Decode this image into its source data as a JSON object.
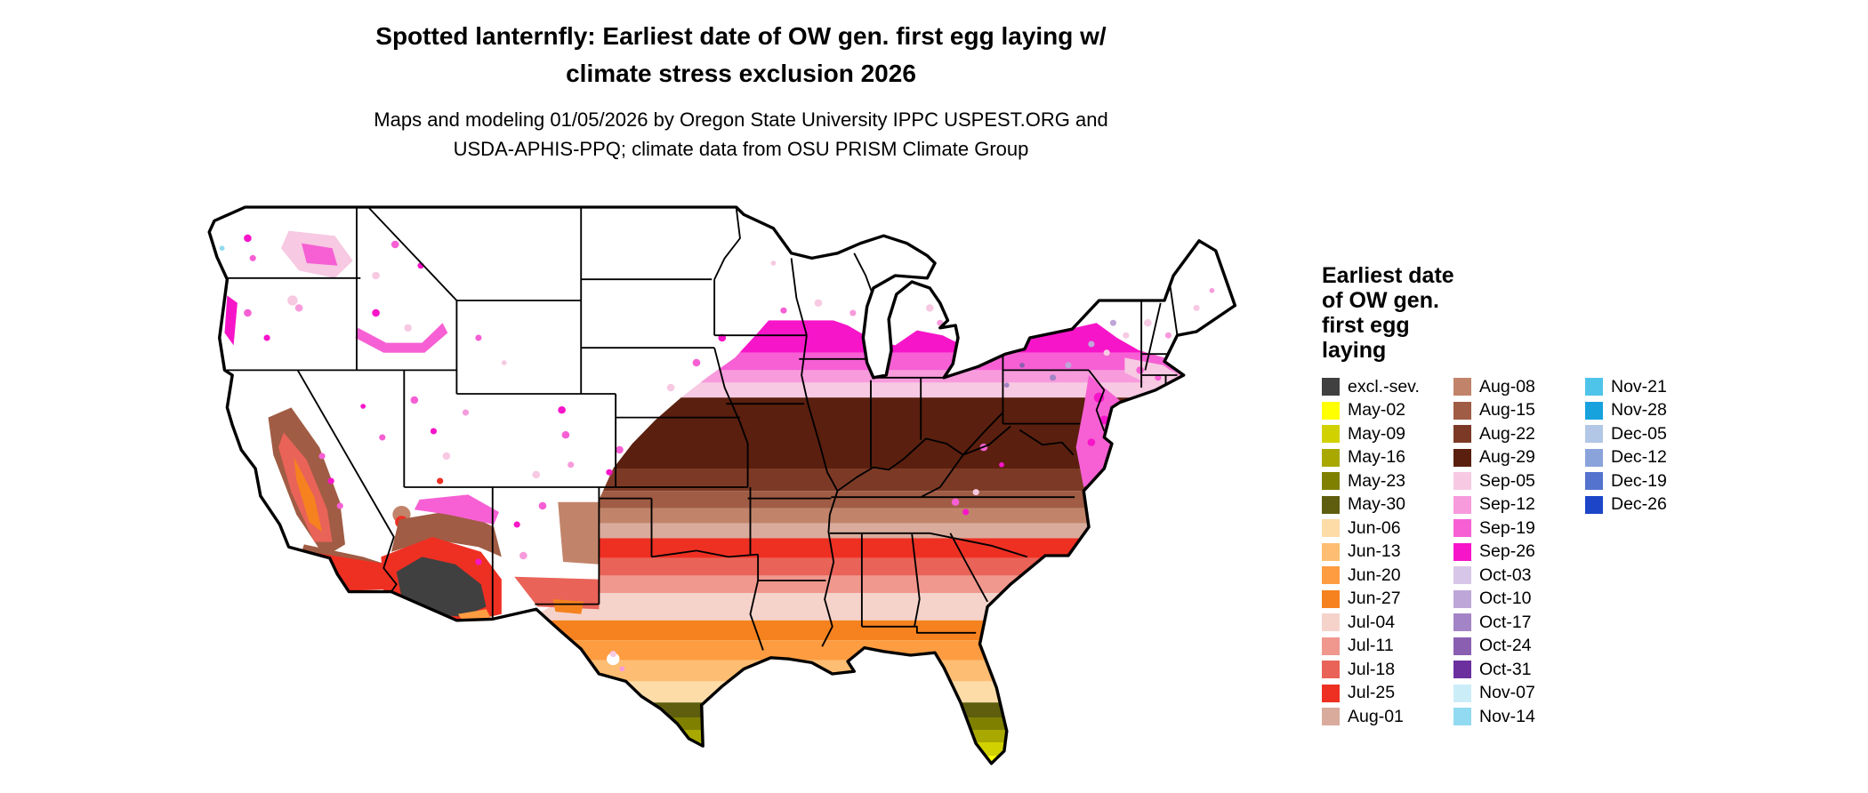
{
  "title": "Spotted lanternfly: Earliest date of OW gen. first egg laying w/\nclimate stress exclusion 2026",
  "subtitle": "Maps and modeling 01/05/2026 by Oregon State University IPPC USPEST.ORG and\nUSDA-APHIS-PPQ; climate data from OSU PRISM Climate Group",
  "legend": {
    "title": "Earliest date\nof OW gen.\nfirst egg\nlaying",
    "columns": [
      [
        {
          "label": "excl.-sev.",
          "color": "#404040"
        },
        {
          "label": "May-02",
          "color": "#FFFF00"
        },
        {
          "label": "May-09",
          "color": "#D1D100"
        },
        {
          "label": "May-16",
          "color": "#A8A800"
        },
        {
          "label": "May-23",
          "color": "#808000"
        },
        {
          "label": "May-30",
          "color": "#5E5E0E"
        },
        {
          "label": "Jun-06",
          "color": "#FDDCA8"
        },
        {
          "label": "Jun-13",
          "color": "#FDBD72"
        },
        {
          "label": "Jun-20",
          "color": "#FD9C41"
        },
        {
          "label": "Jun-27",
          "color": "#F5821F"
        },
        {
          "label": "Jul-04",
          "color": "#F5D3CB"
        },
        {
          "label": "Jul-11",
          "color": "#F0978E"
        },
        {
          "label": "Jul-18",
          "color": "#E96358"
        },
        {
          "label": "Jul-25",
          "color": "#EE3023"
        },
        {
          "label": "Aug-01",
          "color": "#D9AB9C"
        }
      ],
      [
        {
          "label": "Aug-08",
          "color": "#C1846B"
        },
        {
          "label": "Aug-15",
          "color": "#A05C44"
        },
        {
          "label": "Aug-22",
          "color": "#7C3A26"
        },
        {
          "label": "Aug-29",
          "color": "#5A1F0E"
        },
        {
          "label": "Sep-05",
          "color": "#F7C9E2"
        },
        {
          "label": "Sep-12",
          "color": "#F79BDC"
        },
        {
          "label": "Sep-19",
          "color": "#F660D4"
        },
        {
          "label": "Sep-26",
          "color": "#F715C9"
        },
        {
          "label": "Oct-03",
          "color": "#D8C6E8"
        },
        {
          "label": "Oct-10",
          "color": "#BEA6D8"
        },
        {
          "label": "Oct-17",
          "color": "#A384C6"
        },
        {
          "label": "Oct-24",
          "color": "#8A5FB2"
        },
        {
          "label": "Oct-31",
          "color": "#6B2F9E"
        },
        {
          "label": "Nov-07",
          "color": "#CBEDF8"
        },
        {
          "label": "Nov-14",
          "color": "#92DAF1"
        }
      ],
      [
        {
          "label": "Nov-21",
          "color": "#4FC4EA"
        },
        {
          "label": "Nov-28",
          "color": "#17A2DE"
        },
        {
          "label": "Dec-05",
          "color": "#B2C7E6"
        },
        {
          "label": "Dec-12",
          "color": "#8AA3DB"
        },
        {
          "label": "Dec-19",
          "color": "#5473CE"
        },
        {
          "label": "Dec-26",
          "color": "#1C45C8"
        }
      ]
    ]
  }
}
